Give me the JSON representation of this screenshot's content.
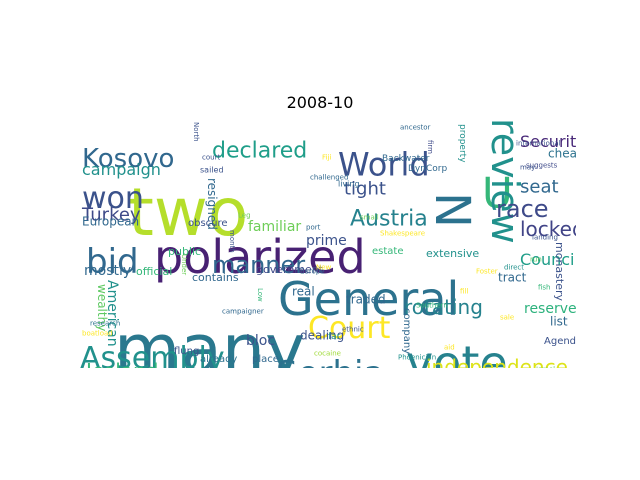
{
  "figure": {
    "title": "2008-10"
  },
  "words": [
    {
      "text": "two",
      "color": "#b5de2b"
    },
    {
      "text": "many",
      "color": "#2a788e"
    },
    {
      "text": "polarized",
      "color": "#482173"
    },
    {
      "text": "General",
      "color": "#2c728e"
    },
    {
      "text": "vote",
      "color": "#26828e"
    },
    {
      "text": "N",
      "color": "#2c728e"
    },
    {
      "text": "U",
      "color": "#35b779"
    },
    {
      "text": "World",
      "color": "#3b528b"
    },
    {
      "text": "Kosovo",
      "color": "#31688e"
    },
    {
      "text": "declared",
      "color": "#1f9e89"
    },
    {
      "text": "won",
      "color": "#3b528b"
    },
    {
      "text": "bid",
      "color": "#31688e"
    },
    {
      "text": "manner",
      "color": "#31688e"
    },
    {
      "text": "review",
      "color": "#21918c"
    },
    {
      "text": "Court",
      "color": "#fde725"
    },
    {
      "text": "Assembly",
      "color": "#21918c"
    },
    {
      "text": "Serbia",
      "color": "#2c728e"
    },
    {
      "text": "Iceland",
      "color": "#35b779"
    },
    {
      "text": "independence",
      "color": "#dde318"
    },
    {
      "text": "Security",
      "color": "#482878"
    },
    {
      "text": "race",
      "color": "#3e4a89"
    },
    {
      "text": "seat",
      "color": "#31688e"
    },
    {
      "text": "locked",
      "color": "#414487"
    },
    {
      "text": "Council",
      "color": "#1f9e89"
    },
    {
      "text": "tight",
      "color": "#3b528b"
    },
    {
      "text": "Austria",
      "color": "#26828e"
    },
    {
      "text": "Turkey",
      "color": "#3e4a89"
    },
    {
      "text": "campaign",
      "color": "#21918c"
    },
    {
      "text": "rotating",
      "color": "#26828e"
    },
    {
      "text": "reserved",
      "color": "#2db27d"
    },
    {
      "text": "European",
      "color": "#31688e"
    },
    {
      "text": "mostly",
      "color": "#31688e"
    },
    {
      "text": "official",
      "color": "#35b779"
    },
    {
      "text": "contains",
      "color": "#31688e"
    },
    {
      "text": "government",
      "color": "#3e4a89"
    },
    {
      "text": "American",
      "color": "#21918c"
    },
    {
      "text": "wealthy",
      "color": "#5ec962"
    },
    {
      "text": "bloc",
      "color": "#3b528b"
    },
    {
      "text": "dealing",
      "color": "#3b528b"
    },
    {
      "text": "traded",
      "color": "#31688e"
    },
    {
      "text": "real",
      "color": "#31688e"
    },
    {
      "text": "prime",
      "color": "#3b528b"
    },
    {
      "text": "familiar",
      "color": "#6ece58"
    },
    {
      "text": "public",
      "color": "#35b779"
    },
    {
      "text": "estate",
      "color": "#35b779"
    },
    {
      "text": "extensive",
      "color": "#21918c"
    },
    {
      "text": "tract",
      "color": "#31688e"
    },
    {
      "text": "list",
      "color": "#31688e"
    },
    {
      "text": "Agenda",
      "color": "#3b528b"
    },
    {
      "text": "already",
      "color": "#2c728e"
    },
    {
      "text": "place",
      "color": "#31688e"
    },
    {
      "text": "flung",
      "color": "#3b528b"
    },
    {
      "text": "company",
      "color": "#31688e"
    },
    {
      "text": "monastery",
      "color": "#3b528b"
    },
    {
      "text": "cheap",
      "color": "#2c728e"
    },
    {
      "text": "resigned",
      "color": "#31688e"
    },
    {
      "text": "obscure",
      "color": "#3b528b"
    },
    {
      "text": "Backwater",
      "color": "#31688e"
    },
    {
      "text": "DynCorp",
      "color": "#31688e"
    },
    {
      "text": "firm",
      "color": "#3e4a89"
    },
    {
      "text": "property",
      "color": "#21918c"
    },
    {
      "text": "living",
      "color": "#31688e"
    },
    {
      "text": "sailed",
      "color": "#3b528b"
    },
    {
      "text": "court",
      "color": "#3b528b"
    },
    {
      "text": "ancestor",
      "color": "#31688e"
    },
    {
      "text": "international",
      "color": "#3b528b"
    },
    {
      "text": "suggests",
      "color": "#3e4a89"
    },
    {
      "text": "direct",
      "color": "#21918c"
    },
    {
      "text": "landing",
      "color": "#3b528b"
    },
    {
      "text": "run",
      "color": "#5ec962"
    },
    {
      "text": "Southern",
      "color": "#35b779"
    },
    {
      "text": "Phoenician",
      "color": "#21918c"
    },
    {
      "text": "Israel",
      "color": "#6ece58"
    },
    {
      "text": "research",
      "color": "#2c728e"
    },
    {
      "text": "campaigner",
      "color": "#31688e"
    },
    {
      "text": "boatload",
      "color": "#fde725"
    },
    {
      "text": "month",
      "color": "#3b528b"
    },
    {
      "text": "challenged",
      "color": "#31688e"
    },
    {
      "text": "Europe",
      "color": "#31688e"
    },
    {
      "text": "port",
      "color": "#31688e"
    },
    {
      "text": "far",
      "color": "#21918c"
    },
    {
      "text": "ethnic",
      "color": "#3b528b"
    },
    {
      "text": "cocaine",
      "color": "#a0da39"
    },
    {
      "text": "Fiji",
      "color": "#fde725"
    },
    {
      "text": "New",
      "color": "#fde725"
    },
    {
      "text": "North",
      "color": "#3b528b"
    },
    {
      "text": "Low",
      "color": "#35b779"
    },
    {
      "text": "small",
      "color": "#6ece58"
    },
    {
      "text": "Under",
      "color": "#6ece58"
    },
    {
      "text": "may",
      "color": "#3b528b"
    },
    {
      "text": "fish",
      "color": "#35b779"
    },
    {
      "text": "sale",
      "color": "#fde725"
    },
    {
      "text": "Foster",
      "color": "#fde725"
    },
    {
      "text": "Shakespeare",
      "color": "#fde725"
    },
    {
      "text": "fill",
      "color": "#fde725"
    },
    {
      "text": "aid",
      "color": "#fde725"
    },
    {
      "text": "Leg",
      "color": "#6ece58"
    }
  ]
}
